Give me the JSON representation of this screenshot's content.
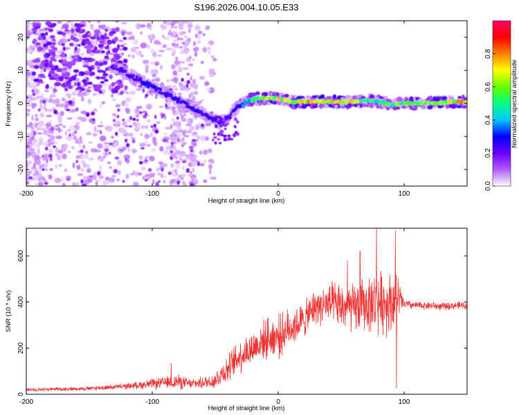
{
  "title": "S196.2026.004.10.05.E33",
  "chart_data": [
    {
      "type": "heatmap",
      "xlabel": "Height of straight line (km)",
      "ylabel": "Frequency (Hz)",
      "xlim": [
        -200,
        150
      ],
      "ylim": [
        -25,
        25
      ],
      "xticks": [
        -200,
        -100,
        0,
        100
      ],
      "yticks": [
        -20,
        -10,
        0,
        10,
        20
      ],
      "colorbar": {
        "label": "Normalized spectral amplitude",
        "range": [
          0,
          1
        ],
        "ticks": [
          "0.0",
          "0.2",
          "0.4",
          "0.6",
          "0.8"
        ],
        "tick_values": [
          0,
          0.2,
          0.4,
          0.6,
          0.8
        ],
        "colormap": [
          "#ffffff",
          "#b15bff",
          "#6b00ff",
          "#0000ff",
          "#00c8ff",
          "#00ff80",
          "#66ff00",
          "#ffff00",
          "#ff8000",
          "#ff0000",
          "#ff0066"
        ]
      },
      "ridge": {
        "height_km": [
          -130,
          -115,
          -100,
          -90,
          -80,
          -70,
          -60,
          -50,
          -45,
          -40,
          -35,
          -30,
          -25,
          -20,
          -10,
          0,
          10,
          20,
          40,
          60,
          70,
          80,
          90,
          100,
          120,
          140,
          150
        ],
        "frequency_hz": [
          11,
          8,
          5,
          3,
          1,
          -1,
          -3,
          -5,
          -6,
          -4,
          -2,
          -0.5,
          0.5,
          1.5,
          1.5,
          1.5,
          0.5,
          0.5,
          0.5,
          0.5,
          1,
          0.5,
          -0.5,
          0,
          0,
          0.5,
          0.5
        ],
        "amplitude": [
          0.25,
          0.3,
          0.3,
          0.28,
          0.3,
          0.28,
          0.3,
          0.3,
          0.28,
          0.25,
          0.3,
          0.35,
          0.4,
          0.55,
          0.7,
          0.75,
          0.8,
          0.8,
          0.8,
          0.78,
          0.6,
          0.55,
          0.6,
          0.65,
          0.7,
          0.8,
          0.85
        ]
      }
    },
    {
      "type": "line",
      "xlabel": "Height of straight line (km)",
      "ylabel": "SNR (10 * v/v)",
      "xlim": [
        -200,
        150
      ],
      "ylim": [
        0,
        720
      ],
      "xticks": [
        -200,
        -100,
        0,
        100
      ],
      "yticks": [
        0,
        200,
        400,
        600
      ],
      "color": "#ee3333",
      "envelope": {
        "x": [
          -200,
          -150,
          -120,
          -100,
          -90,
          -80,
          -70,
          -60,
          -50,
          -45,
          -40,
          -30,
          -20,
          -10,
          0,
          10,
          20,
          30,
          40,
          50,
          60,
          70,
          80,
          90,
          95,
          100,
          110,
          120,
          130,
          140,
          150
        ],
        "mean": [
          20,
          25,
          35,
          45,
          50,
          55,
          45,
          50,
          60,
          90,
          110,
          170,
          200,
          240,
          250,
          290,
          320,
          380,
          390,
          380,
          370,
          390,
          400,
          400,
          420,
          390,
          385,
          385,
          380,
          385,
          385
        ],
        "spread": [
          8,
          10,
          15,
          25,
          30,
          40,
          25,
          30,
          45,
          60,
          70,
          90,
          90,
          100,
          110,
          100,
          90,
          90,
          110,
          120,
          130,
          140,
          160,
          160,
          120,
          25,
          20,
          20,
          20,
          20,
          20
        ]
      },
      "spikes": [
        {
          "x": -85,
          "y": 135
        },
        {
          "x": -8,
          "y": 330
        },
        {
          "x": 28,
          "y": 430
        },
        {
          "x": 55,
          "y": 580
        },
        {
          "x": 65,
          "y": 620
        },
        {
          "x": 78,
          "y": 720
        },
        {
          "x": 93,
          "y": 710
        },
        {
          "x": 94,
          "y": 25
        }
      ]
    }
  ]
}
